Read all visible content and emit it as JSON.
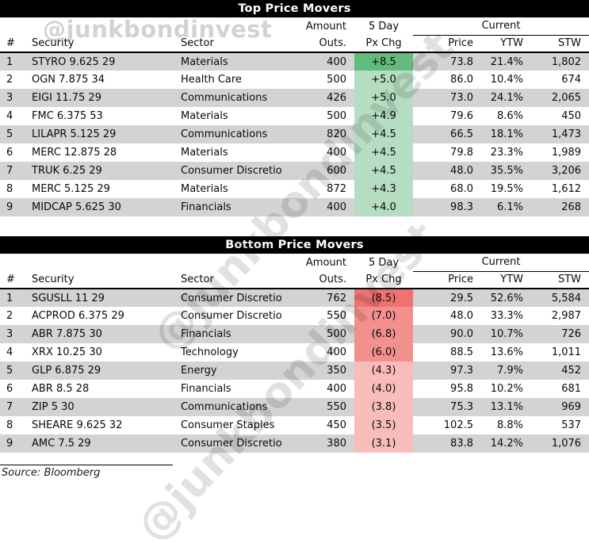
{
  "watermark": {
    "horizontal": "@junkbondinvest",
    "diagonal": "@junkbondinvest"
  },
  "source_note": "Source: Bloomberg",
  "colors": {
    "header_bar_bg": "#000000",
    "header_bar_text": "#ffffff",
    "row_alt_gray": "#d3d3d3",
    "positive_strong": "#63ba7d",
    "positive_light": "#b5ddc1",
    "negative_strong": "#ee7270",
    "negative_medium": "#f2908e",
    "negative_light": "#f8bdbb"
  },
  "columns": {
    "num": "#",
    "security": "Security",
    "sector": "Sector",
    "amount_line1": "Amount",
    "amount_line2": "Outs.",
    "pxchg_line1": "5 Day",
    "pxchg_line2": "Px Chg",
    "current_group": "Current",
    "price": "Price",
    "ytw": "YTW",
    "stw": "STW"
  },
  "top_table": {
    "title": "Top Price Movers",
    "rows": [
      {
        "num": "1",
        "security": "STYRO 9.625 29",
        "sector": "Materials",
        "amount": "400",
        "px_chg": "+8.5",
        "px_chg_bg": "#63ba7d",
        "price": "73.8",
        "ytw": "21.4%",
        "stw": "1,802"
      },
      {
        "num": "2",
        "security": "OGN 7.875 34",
        "sector": "Health Care",
        "amount": "500",
        "px_chg": "+5.0",
        "px_chg_bg": "#b5ddc1",
        "price": "86.0",
        "ytw": "10.4%",
        "stw": "674"
      },
      {
        "num": "3",
        "security": "EIGI 11.75 29",
        "sector": "Communications",
        "amount": "426",
        "px_chg": "+5.0",
        "px_chg_bg": "#b5ddc1",
        "price": "73.0",
        "ytw": "24.1%",
        "stw": "2,065"
      },
      {
        "num": "4",
        "security": "FMC 6.375 53",
        "sector": "Materials",
        "amount": "500",
        "px_chg": "+4.9",
        "px_chg_bg": "#b5ddc1",
        "price": "79.6",
        "ytw": "8.6%",
        "stw": "450"
      },
      {
        "num": "5",
        "security": "LILAPR 5.125 29",
        "sector": "Communications",
        "amount": "820",
        "px_chg": "+4.5",
        "px_chg_bg": "#b5ddc1",
        "price": "66.5",
        "ytw": "18.1%",
        "stw": "1,473"
      },
      {
        "num": "6",
        "security": "MERC 12.875 28",
        "sector": "Materials",
        "amount": "400",
        "px_chg": "+4.5",
        "px_chg_bg": "#b5ddc1",
        "price": "79.8",
        "ytw": "23.3%",
        "stw": "1,989"
      },
      {
        "num": "7",
        "security": "TRUK 6.25 29",
        "sector": "Consumer Discretio",
        "amount": "600",
        "px_chg": "+4.5",
        "px_chg_bg": "#b5ddc1",
        "price": "48.0",
        "ytw": "35.5%",
        "stw": "3,206"
      },
      {
        "num": "8",
        "security": "MERC 5.125 29",
        "sector": "Materials",
        "amount": "872",
        "px_chg": "+4.3",
        "px_chg_bg": "#b5ddc1",
        "price": "68.0",
        "ytw": "19.5%",
        "stw": "1,612"
      },
      {
        "num": "9",
        "security": "MIDCAP 5.625 30",
        "sector": "Financials",
        "amount": "400",
        "px_chg": "+4.0",
        "px_chg_bg": "#b5ddc1",
        "price": "98.3",
        "ytw": "6.1%",
        "stw": "268"
      }
    ]
  },
  "bottom_table": {
    "title": "Bottom Price Movers",
    "rows": [
      {
        "num": "1",
        "security": "SGUSLL 11 29",
        "sector": "Consumer Discretio",
        "amount": "762",
        "px_chg": "(8.5)",
        "px_chg_bg": "#ee7270",
        "price": "29.5",
        "ytw": "52.6%",
        "stw": "5,584"
      },
      {
        "num": "2",
        "security": "ACPROD 6.375 29",
        "sector": "Consumer Discretio",
        "amount": "550",
        "px_chg": "(7.0)",
        "px_chg_bg": "#f2908e",
        "price": "48.0",
        "ytw": "33.3%",
        "stw": "2,987"
      },
      {
        "num": "3",
        "security": "ABR 7.875 30",
        "sector": "Financials",
        "amount": "500",
        "px_chg": "(6.8)",
        "px_chg_bg": "#f2908e",
        "price": "90.0",
        "ytw": "10.7%",
        "stw": "726"
      },
      {
        "num": "4",
        "security": "XRX 10.25 30",
        "sector": "Technology",
        "amount": "400",
        "px_chg": "(6.0)",
        "px_chg_bg": "#f2908e",
        "price": "88.5",
        "ytw": "13.6%",
        "stw": "1,011"
      },
      {
        "num": "5",
        "security": "GLP 6.875 29",
        "sector": "Energy",
        "amount": "350",
        "px_chg": "(4.3)",
        "px_chg_bg": "#f8bdbb",
        "price": "97.3",
        "ytw": "7.9%",
        "stw": "452"
      },
      {
        "num": "6",
        "security": "ABR 8.5 28",
        "sector": "Financials",
        "amount": "400",
        "px_chg": "(4.0)",
        "px_chg_bg": "#f8bdbb",
        "price": "95.8",
        "ytw": "10.2%",
        "stw": "681"
      },
      {
        "num": "7",
        "security": "ZIP 5 30",
        "sector": "Communications",
        "amount": "550",
        "px_chg": "(3.8)",
        "px_chg_bg": "#f8bdbb",
        "price": "75.3",
        "ytw": "13.1%",
        "stw": "969"
      },
      {
        "num": "8",
        "security": "SHEARE 9.625 32",
        "sector": "Consumer Staples",
        "amount": "450",
        "px_chg": "(3.5)",
        "px_chg_bg": "#f8bdbb",
        "price": "102.5",
        "ytw": "8.8%",
        "stw": "537"
      },
      {
        "num": "9",
        "security": "AMC 7.5 29",
        "sector": "Consumer Discretio",
        "amount": "380",
        "px_chg": "(3.1)",
        "px_chg_bg": "#f8bdbb",
        "price": "83.8",
        "ytw": "14.2%",
        "stw": "1,076"
      }
    ]
  },
  "chart_data": [
    {
      "type": "table",
      "title": "Top Price Movers",
      "columns": [
        "#",
        "Security",
        "Sector",
        "Amount Outs.",
        "5 Day Px Chg",
        "Current Price",
        "Current YTW",
        "Current STW"
      ],
      "rows": [
        [
          "1",
          "STYRO 9.625 29",
          "Materials",
          400,
          8.5,
          73.8,
          "21.4%",
          1802
        ],
        [
          "2",
          "OGN 7.875 34",
          "Health Care",
          500,
          5.0,
          86.0,
          "10.4%",
          674
        ],
        [
          "3",
          "EIGI 11.75 29",
          "Communications",
          426,
          5.0,
          73.0,
          "24.1%",
          2065
        ],
        [
          "4",
          "FMC 6.375 53",
          "Materials",
          500,
          4.9,
          79.6,
          "8.6%",
          450
        ],
        [
          "5",
          "LILAPR 5.125 29",
          "Communications",
          820,
          4.5,
          66.5,
          "18.1%",
          1473
        ],
        [
          "6",
          "MERC 12.875 28",
          "Materials",
          400,
          4.5,
          79.8,
          "23.3%",
          1989
        ],
        [
          "7",
          "TRUK 6.25 29",
          "Consumer Discretio",
          600,
          4.5,
          48.0,
          "35.5%",
          3206
        ],
        [
          "8",
          "MERC 5.125 29",
          "Materials",
          872,
          4.3,
          68.0,
          "19.5%",
          1612
        ],
        [
          "9",
          "MIDCAP 5.625 30",
          "Financials",
          400,
          4.0,
          98.3,
          "6.1%",
          268
        ]
      ]
    },
    {
      "type": "table",
      "title": "Bottom Price Movers",
      "columns": [
        "#",
        "Security",
        "Sector",
        "Amount Outs.",
        "5 Day Px Chg",
        "Current Price",
        "Current YTW",
        "Current STW"
      ],
      "rows": [
        [
          "1",
          "SGUSLL 11 29",
          "Consumer Discretio",
          762,
          -8.5,
          29.5,
          "52.6%",
          5584
        ],
        [
          "2",
          "ACPROD 6.375 29",
          "Consumer Discretio",
          550,
          -7.0,
          48.0,
          "33.3%",
          2987
        ],
        [
          "3",
          "ABR 7.875 30",
          "Financials",
          500,
          -6.8,
          90.0,
          "10.7%",
          726
        ],
        [
          "4",
          "XRX 10.25 30",
          "Technology",
          400,
          -6.0,
          88.5,
          "13.6%",
          1011
        ],
        [
          "5",
          "GLP 6.875 29",
          "Energy",
          350,
          -4.3,
          97.3,
          "7.9%",
          452
        ],
        [
          "6",
          "ABR 8.5 28",
          "Financials",
          400,
          -4.0,
          95.8,
          "10.2%",
          681
        ],
        [
          "7",
          "ZIP 5 30",
          "Communications",
          550,
          -3.8,
          75.3,
          "13.1%",
          969
        ],
        [
          "8",
          "SHEARE 9.625 32",
          "Consumer Staples",
          450,
          -3.5,
          102.5,
          "8.8%",
          537
        ],
        [
          "9",
          "AMC 7.5 29",
          "Consumer Discretio",
          380,
          -3.1,
          83.8,
          "14.2%",
          1076
        ]
      ]
    }
  ]
}
